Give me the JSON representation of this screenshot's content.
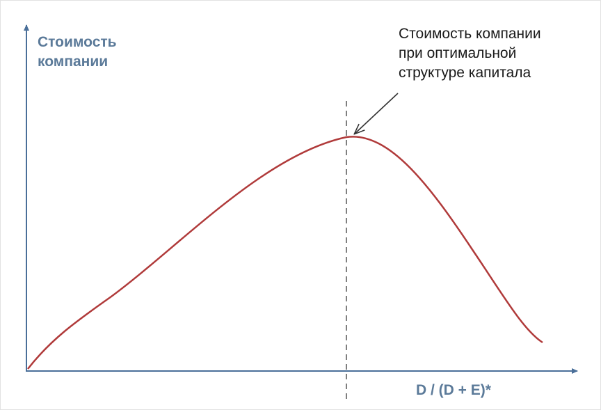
{
  "y_axis_label": {
    "lines": [
      "Стоимость",
      "компании"
    ]
  },
  "annotation": {
    "lines": [
      "Стоимость компании",
      "при оптимальной",
      "структуре капитала"
    ]
  },
  "x_axis_label": "D / (D + E)*"
}
